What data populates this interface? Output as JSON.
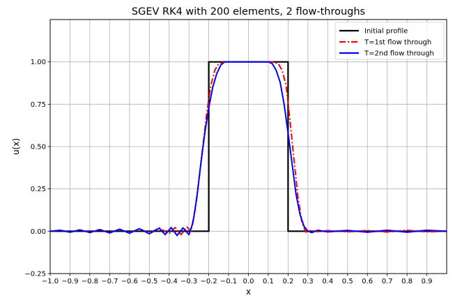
{
  "chart_data": {
    "type": "line",
    "title": "SGEV RK4 with 200 elements, 2 flow-throughs",
    "xlabel": "x",
    "ylabel": "u(x)",
    "xlim": [
      -1.0,
      1.0
    ],
    "ylim": [
      -0.25,
      1.25
    ],
    "xticks": [
      -1.0,
      -0.9,
      -0.8,
      -0.7,
      -0.6,
      -0.5,
      -0.4,
      -0.3,
      -0.2,
      -0.1,
      0.0,
      0.1,
      0.2,
      0.3,
      0.4,
      0.5,
      0.6,
      0.7,
      0.8,
      0.9
    ],
    "xtick_labels": [
      "−1.0",
      "−0.9",
      "−0.8",
      "−0.7",
      "−0.6",
      "−0.5",
      "−0.4",
      "−0.3",
      "−0.2",
      "−0.1",
      "0.0",
      "0.1",
      "0.2",
      "0.3",
      "0.4",
      "0.5",
      "0.6",
      "0.7",
      "0.8",
      "0.9"
    ],
    "yticks": [
      -0.25,
      0.0,
      0.25,
      0.5,
      0.75,
      1.0
    ],
    "ytick_labels": [
      "−0.25",
      "0.00",
      "0.25",
      "0.50",
      "0.75",
      "1.00"
    ],
    "grid": true,
    "legend_position": "upper right",
    "series": [
      {
        "name": "Initial profile",
        "color": "#000000",
        "style": "solid",
        "x": [
          -1.0,
          -0.2,
          -0.2,
          0.2,
          0.2,
          1.0
        ],
        "y": [
          0.0,
          0.0,
          1.0,
          1.0,
          0.0,
          0.0
        ]
      },
      {
        "name": "T=1st flow through",
        "color": "#ff0000",
        "style": "dashdot",
        "x": [
          -1.0,
          -0.95,
          -0.9,
          -0.85,
          -0.8,
          -0.75,
          -0.7,
          -0.65,
          -0.6,
          -0.55,
          -0.5,
          -0.45,
          -0.4,
          -0.37,
          -0.34,
          -0.31,
          -0.29,
          -0.27,
          -0.25,
          -0.23,
          -0.21,
          -0.19,
          -0.17,
          -0.15,
          -0.12,
          -0.09,
          -0.06,
          0.0,
          0.06,
          0.09,
          0.12,
          0.15,
          0.17,
          0.19,
          0.21,
          0.23,
          0.25,
          0.27,
          0.29,
          0.31,
          0.35,
          0.4,
          0.5,
          0.6,
          0.7,
          0.8,
          0.9,
          1.0
        ],
        "y": [
          0.0,
          0.005,
          -0.005,
          0.008,
          -0.006,
          0.01,
          -0.008,
          0.012,
          -0.01,
          0.015,
          -0.012,
          0.02,
          -0.015,
          0.022,
          -0.02,
          0.025,
          0.0,
          0.12,
          0.3,
          0.5,
          0.7,
          0.86,
          0.95,
          0.99,
          1.0,
          1.0,
          1.0,
          1.0,
          1.0,
          1.0,
          1.0,
          0.99,
          0.95,
          0.86,
          0.65,
          0.42,
          0.2,
          0.05,
          -0.005,
          0.003,
          -0.002,
          0.004,
          -0.004,
          0.005,
          -0.005,
          0.006,
          -0.004,
          0.0
        ]
      },
      {
        "name": "T=2nd flow through",
        "color": "#0000ff",
        "style": "solid",
        "x": [
          -1.0,
          -0.95,
          -0.9,
          -0.85,
          -0.8,
          -0.75,
          -0.7,
          -0.65,
          -0.6,
          -0.55,
          -0.5,
          -0.45,
          -0.42,
          -0.39,
          -0.36,
          -0.33,
          -0.3,
          -0.28,
          -0.26,
          -0.24,
          -0.22,
          -0.2,
          -0.18,
          -0.16,
          -0.14,
          -0.12,
          -0.1,
          -0.05,
          0.0,
          0.05,
          0.1,
          0.12,
          0.14,
          0.16,
          0.18,
          0.2,
          0.22,
          0.24,
          0.26,
          0.28,
          0.3,
          0.32,
          0.35,
          0.4,
          0.5,
          0.6,
          0.7,
          0.8,
          0.9,
          1.0
        ],
        "y": [
          0.0,
          0.006,
          -0.006,
          0.008,
          -0.008,
          0.01,
          -0.01,
          0.012,
          -0.012,
          0.015,
          -0.015,
          0.018,
          -0.02,
          0.022,
          -0.025,
          0.02,
          -0.02,
          0.05,
          0.2,
          0.4,
          0.58,
          0.73,
          0.85,
          0.93,
          0.98,
          1.0,
          1.0,
          1.0,
          1.0,
          1.0,
          1.0,
          0.99,
          0.95,
          0.88,
          0.75,
          0.58,
          0.4,
          0.22,
          0.1,
          0.03,
          0.0,
          -0.008,
          0.006,
          -0.004,
          0.005,
          -0.006,
          0.006,
          -0.006,
          0.006,
          0.0
        ]
      }
    ]
  }
}
